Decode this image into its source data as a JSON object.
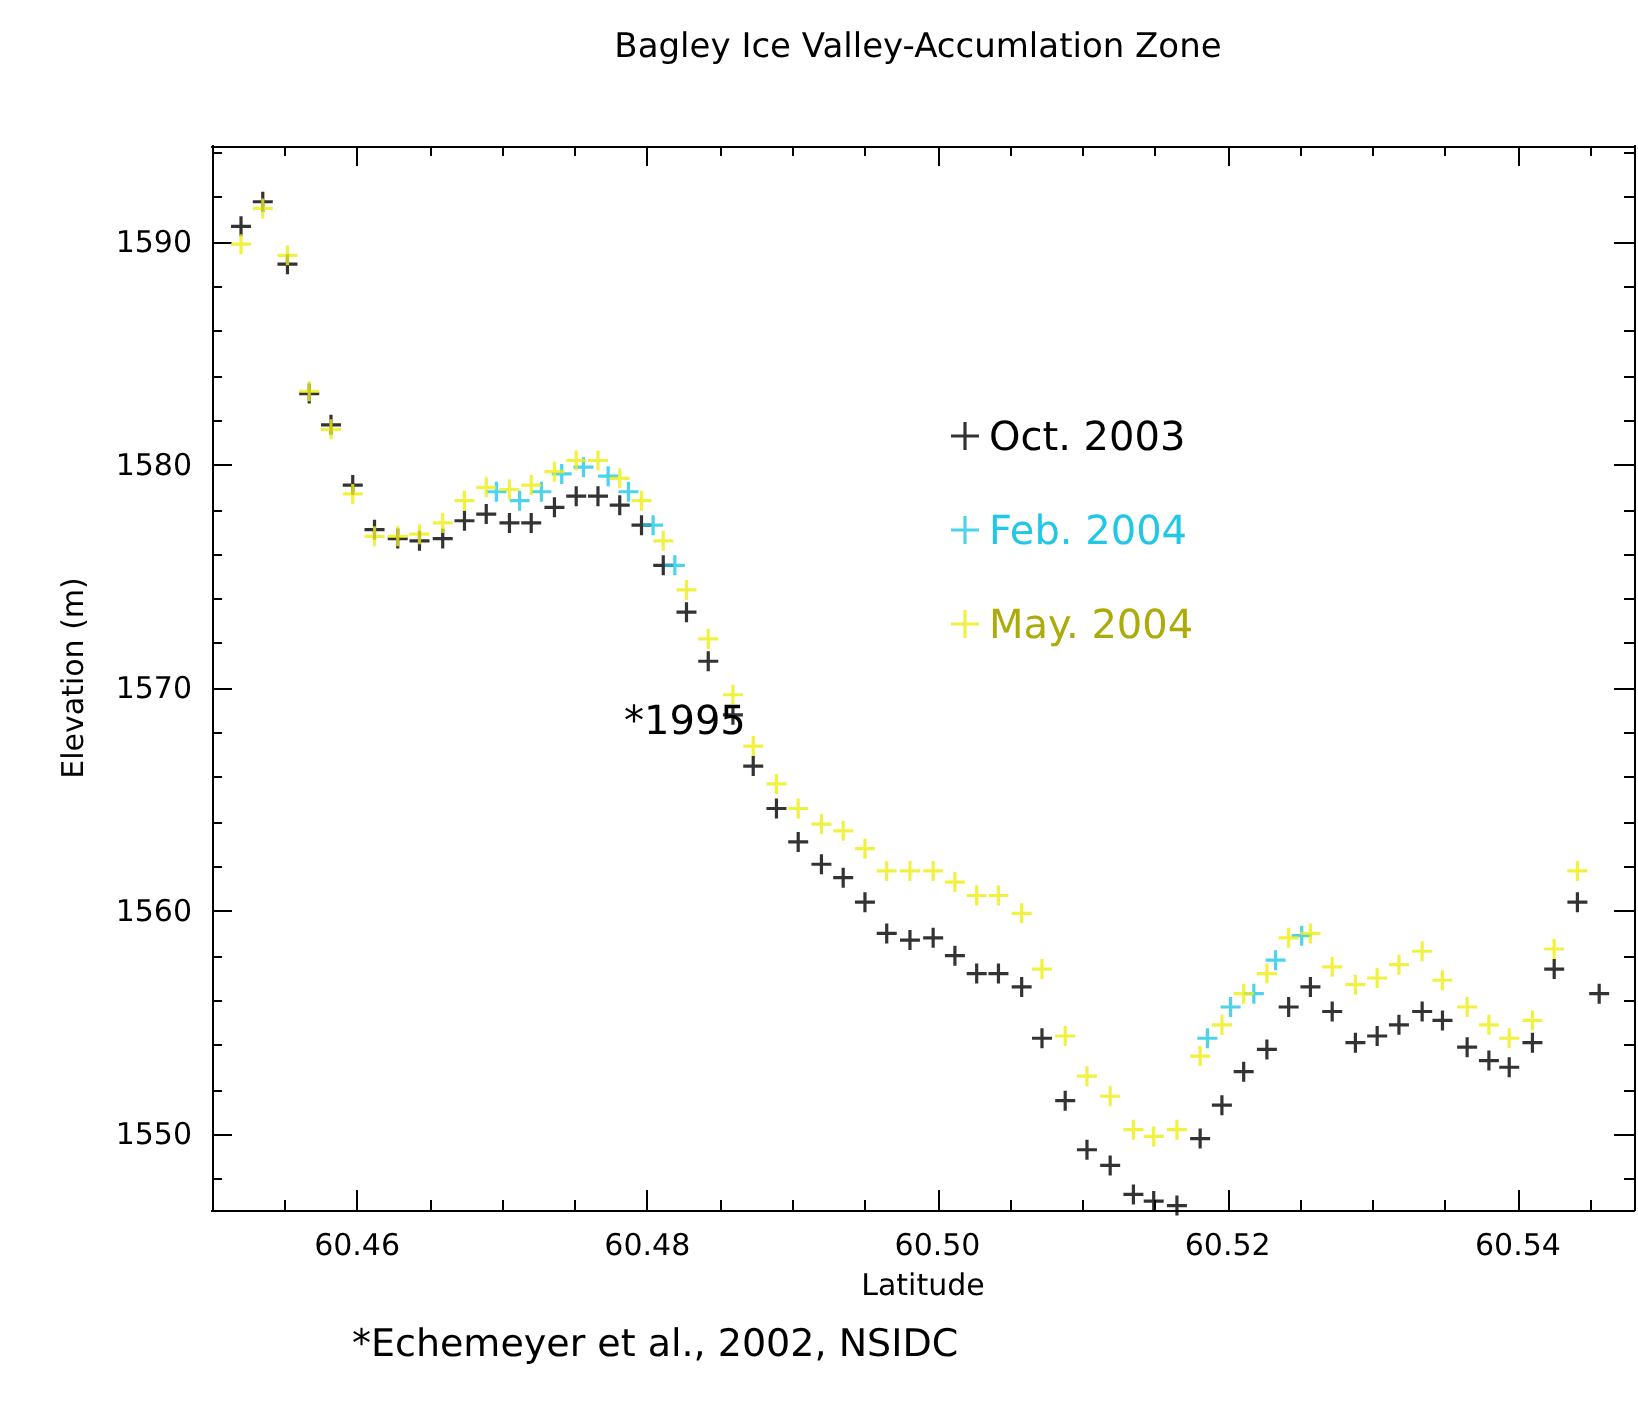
{
  "chart_data": {
    "type": "scatter",
    "title": "Bagley Ice Valley-Accumlation Zone",
    "xlabel": "Latitude",
    "ylabel": "Elevation (m)",
    "xlim": [
      60.45,
      60.548
    ],
    "xticks": [
      60.46,
      60.48,
      {
        "value": 60.5,
        "label": "60.50"
      },
      60.52,
      60.54
    ],
    "ylim": [
      1546.6,
      1594.3
    ],
    "yticks": [
      1550,
      1560,
      1570,
      1580,
      1590
    ],
    "grid": false,
    "legend": "top right",
    "marker": "cross",
    "annotations": [
      "*1995",
      "*Echemeyer et al., 2002, NSIDC"
    ],
    "x": [
      60.452,
      60.4535,
      60.4552,
      60.4567,
      60.4582,
      60.4597,
      60.4612,
      60.4628,
      60.4643,
      60.4659,
      60.4674,
      60.4689,
      60.4705,
      60.472,
      60.4736,
      60.4751,
      60.4766,
      60.4781,
      60.4796,
      60.4811,
      60.4827,
      60.4842,
      60.4859,
      60.4873,
      60.4889,
      60.4904,
      60.492,
      60.4935,
      60.495,
      60.4965,
      60.4981,
      60.4997,
      60.5012,
      60.5027,
      60.5042,
      60.5058,
      60.5072,
      60.5088,
      60.5103,
      60.5119,
      60.5135,
      60.5149,
      60.5165,
      60.5181,
      60.5196,
      60.5211,
      60.5227,
      60.5242,
      60.5257,
      60.5272,
      60.5288,
      60.5303,
      60.5318,
      60.5334,
      60.5348,
      60.5365,
      60.538,
      60.5394,
      60.541,
      60.5425,
      60.5441,
      60.5456
    ],
    "series": [
      {
        "name": "Oct. 2003",
        "color": "#000000",
        "values": [
          1590.7,
          1591.8,
          1589.0,
          1583.2,
          1581.8,
          1579.1,
          1577.1,
          1576.7,
          1576.6,
          1576.7,
          1577.5,
          1577.8,
          1577.4,
          1577.4,
          1578.1,
          1578.6,
          1578.6,
          1578.2,
          1577.3,
          1575.5,
          1573.4,
          1571.2,
          1568.8,
          1566.5,
          1564.6,
          1563.1,
          1562.1,
          1561.5,
          1560.4,
          1559.0,
          1558.7,
          1558.8,
          1558.0,
          1557.2,
          1557.2,
          1556.6,
          1554.3,
          1551.5,
          1549.3,
          1548.6,
          1547.3,
          1547.0,
          1546.8,
          1549.8,
          1551.3,
          1552.8,
          1553.8,
          1555.7,
          1556.6,
          1555.5,
          1554.1,
          1554.4,
          1554.9,
          1555.5,
          1555.1,
          1553.9,
          1553.3,
          1553.0,
          1554.1,
          1557.4,
          1560.4,
          1556.3
        ]
      },
      {
        "name": "Feb. 2004",
        "color": "#22c8e8",
        "x": [
          60.4696,
          60.4712,
          60.4727,
          60.4741,
          60.4756,
          60.4773,
          60.4787,
          60.4804,
          60.4819,
          60.5186,
          60.5202,
          60.5218,
          60.5233,
          60.5251
        ],
        "values": [
          1578.8,
          1578.4,
          1578.8,
          1579.6,
          1579.9,
          1579.5,
          1578.8,
          1577.3,
          1575.5,
          1554.3,
          1555.7,
          1556.3,
          1557.8,
          1558.9
        ]
      },
      {
        "name": "May. 2004",
        "color": "#eeee11",
        "values": [
          1589.9,
          1591.5,
          1589.4,
          1583.3,
          1581.6,
          1578.7,
          1576.8,
          1576.8,
          1576.9,
          1577.4,
          1578.4,
          1579.0,
          1578.9,
          1579.1,
          1579.7,
          1580.2,
          1580.2,
          1579.4,
          1578.4,
          1576.6,
          1574.4,
          1572.2,
          1569.7,
          1567.4,
          1565.7,
          1564.6,
          1563.9,
          1563.6,
          1562.8,
          1561.8,
          1561.8,
          1561.8,
          1561.3,
          1560.7,
          1560.7,
          1559.9,
          1557.4,
          1554.4,
          1552.6,
          1551.7,
          1550.2,
          1549.9,
          1550.2,
          1553.5,
          1554.9,
          1556.3,
          1557.2,
          1558.8,
          1559.0,
          1557.5,
          1556.7,
          1557.0,
          1557.6,
          1558.2,
          1556.9,
          1555.7,
          1554.9,
          1554.3,
          1555.1,
          1558.3,
          1561.8,
          null
        ]
      }
    ]
  }
}
